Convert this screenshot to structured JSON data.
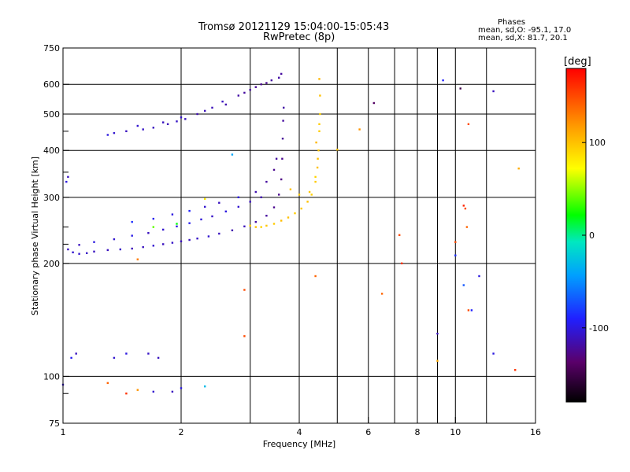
{
  "header": {
    "title_line1": "Tromsø 20121129 15:04:00-15:05:43",
    "title_line2": "RwPretec (8p)"
  },
  "stats": {
    "heading": "Phases",
    "line_o": "mean, sd,O: -95.1, 17.0",
    "line_x": "mean, sd,X:  81.7, 20.1"
  },
  "colorbar": {
    "unit": "[deg]",
    "ticks": [
      100,
      0,
      -100
    ],
    "range": [
      -180,
      180
    ]
  },
  "chart_data": {
    "type": "scatter",
    "title": "Tromsø 20121129 15:04:00-15:05:43",
    "subtitle": "RwPretec (8p)",
    "xlabel": "Frequency [MHz]",
    "ylabel": "Stationary phase Virtual Height [km]",
    "xscale": "log",
    "yscale": "log",
    "xlim": [
      1,
      16
    ],
    "ylim": [
      75,
      750
    ],
    "xticks": [
      1,
      2,
      4,
      6,
      8,
      10,
      16
    ],
    "yticks": [
      75,
      100,
      200,
      300,
      400,
      500,
      600,
      750
    ],
    "x_minor_gridlines": [
      3,
      5,
      7,
      9,
      12
    ],
    "y_minor_gridlines": [
      90,
      225,
      250,
      350,
      450
    ],
    "grid": true,
    "color_encodes": "phase [deg]",
    "series": [
      {
        "points": [
          [
            1.03,
            218
          ],
          [
            1.06,
            214
          ],
          [
            1.1,
            212
          ],
          [
            1.15,
            213
          ],
          [
            1.2,
            215
          ],
          [
            1.3,
            217
          ],
          [
            1.4,
            218
          ],
          [
            1.5,
            219
          ],
          [
            1.6,
            221
          ],
          [
            1.7,
            223
          ],
          [
            1.8,
            225
          ],
          [
            1.9,
            227
          ],
          [
            2.0,
            229
          ],
          [
            2.1,
            231
          ],
          [
            2.2,
            233
          ],
          [
            2.35,
            236
          ],
          [
            2.5,
            240
          ],
          [
            2.7,
            245
          ],
          [
            2.9,
            251
          ],
          [
            3.1,
            258
          ],
          [
            3.3,
            268
          ],
          [
            3.45,
            282
          ],
          [
            3.55,
            305
          ],
          [
            3.6,
            335
          ],
          [
            3.62,
            380
          ],
          [
            3.63,
            430
          ],
          [
            3.64,
            480
          ],
          [
            3.65,
            520
          ],
          [
            1.1,
            224
          ],
          [
            1.2,
            228
          ],
          [
            1.35,
            232
          ],
          [
            1.5,
            237
          ],
          [
            1.65,
            241
          ],
          [
            1.8,
            246
          ],
          [
            1.95,
            251
          ],
          [
            2.1,
            256
          ],
          [
            2.25,
            262
          ],
          [
            2.4,
            267
          ],
          [
            2.6,
            275
          ],
          [
            2.8,
            283
          ],
          [
            3.0,
            292
          ],
          [
            3.2,
            300
          ],
          [
            1.5,
            258
          ],
          [
            1.7,
            263
          ],
          [
            1.9,
            270
          ],
          [
            2.1,
            276
          ],
          [
            2.3,
            283
          ],
          [
            2.5,
            290
          ],
          [
            2.8,
            300
          ],
          [
            3.1,
            310
          ],
          [
            3.3,
            330
          ],
          [
            3.45,
            355
          ],
          [
            3.5,
            380
          ],
          [
            1.35,
            445
          ],
          [
            1.45,
            450
          ],
          [
            1.6,
            455
          ],
          [
            1.7,
            460
          ],
          [
            1.85,
            470
          ],
          [
            1.95,
            478
          ],
          [
            2.05,
            485
          ],
          [
            2.2,
            500
          ],
          [
            2.4,
            520
          ],
          [
            2.55,
            540
          ],
          [
            2.8,
            560
          ],
          [
            3.0,
            580
          ],
          [
            3.2,
            600
          ],
          [
            3.4,
            615
          ],
          [
            3.55,
            625
          ],
          [
            3.6,
            640
          ],
          [
            1.3,
            440
          ],
          [
            1.55,
            465
          ],
          [
            1.8,
            475
          ],
          [
            2.0,
            490
          ],
          [
            2.3,
            510
          ],
          [
            2.6,
            530
          ],
          [
            2.9,
            570
          ],
          [
            3.1,
            590
          ],
          [
            3.3,
            605
          ],
          [
            1.03,
            340
          ],
          [
            1.02,
            330
          ],
          [
            1.05,
            112
          ],
          [
            1.08,
            115
          ],
          [
            1.35,
            112
          ],
          [
            1.45,
            115
          ],
          [
            1.65,
            115
          ],
          [
            1.75,
            112
          ],
          [
            1.7,
            91
          ],
          [
            1.9,
            91
          ],
          [
            2.0,
            93
          ],
          [
            1.0,
            95
          ],
          [
            6.2,
            535
          ],
          [
            9.3,
            615
          ],
          [
            10.3,
            585
          ],
          [
            12.5,
            575
          ],
          [
            9.0,
            130
          ],
          [
            11.5,
            185
          ],
          [
            10.0,
            210
          ],
          [
            12.5,
            115
          ],
          [
            10.5,
            175
          ],
          [
            11.0,
            150
          ]
        ],
        "phase_deg": [
          -110,
          -105,
          -105,
          -108,
          -110,
          -110,
          -108,
          -112,
          -110,
          -105,
          -110,
          -108,
          -112,
          -110,
          -108,
          -105,
          -110,
          -115,
          -112,
          -118,
          -120,
          -125,
          -125,
          -128,
          -125,
          -122,
          -120,
          -118,
          -110,
          -100,
          -105,
          -98,
          -110,
          -105,
          -100,
          -95,
          -102,
          -108,
          -100,
          -105,
          -110,
          -115,
          -85,
          -95,
          -100,
          -90,
          -105,
          -110,
          -100,
          -115,
          -120,
          -125,
          -120,
          -105,
          -110,
          -108,
          -110,
          -112,
          -108,
          -110,
          -115,
          -112,
          -110,
          -118,
          -120,
          -125,
          -120,
          -118,
          -120,
          -100,
          -105,
          -110,
          -108,
          -112,
          -115,
          -120,
          -122,
          -125,
          -110,
          -100,
          -95,
          -110,
          -105,
          -100,
          -108,
          -110,
          -105,
          -110,
          -100,
          -105,
          -140,
          -90,
          -150,
          -110,
          -110,
          -100,
          -85,
          -100,
          -70,
          -90
        ]
      },
      {
        "points": [
          [
            3.0,
            252
          ],
          [
            3.1,
            250
          ],
          [
            3.2,
            250
          ],
          [
            3.3,
            252
          ],
          [
            3.45,
            255
          ],
          [
            3.6,
            260
          ],
          [
            3.75,
            265
          ],
          [
            3.9,
            272
          ],
          [
            4.05,
            280
          ],
          [
            4.2,
            292
          ],
          [
            4.3,
            305
          ],
          [
            4.4,
            330
          ],
          [
            4.45,
            360
          ],
          [
            4.48,
            400
          ],
          [
            4.5,
            450
          ],
          [
            4.52,
            500
          ],
          [
            4.52,
            560
          ],
          [
            4.5,
            620
          ],
          [
            3.8,
            315
          ],
          [
            4.0,
            305
          ],
          [
            4.25,
            310
          ],
          [
            4.4,
            340
          ],
          [
            4.46,
            380
          ],
          [
            4.42,
            420
          ],
          [
            4.5,
            470
          ]
        ],
        "phase_deg": [
          95,
          100,
          92,
          98,
          96,
          102,
          100,
          95,
          98,
          100,
          94,
          96,
          100,
          98,
          95,
          92,
          100,
          105,
          100,
          95,
          98,
          92,
          100,
          105,
          95
        ]
      },
      {
        "points": [
          [
            2.3,
            297
          ],
          [
            2.7,
            390
          ],
          [
            2.9,
            170
          ],
          [
            2.9,
            128
          ],
          [
            4.4,
            185
          ],
          [
            5.0,
            402
          ],
          [
            5.7,
            455
          ],
          [
            6.5,
            166
          ],
          [
            7.2,
            238
          ],
          [
            7.3,
            200
          ],
          [
            10.0,
            228
          ],
          [
            10.8,
            470
          ],
          [
            10.6,
            280
          ],
          [
            10.8,
            150
          ],
          [
            10.7,
            250
          ],
          [
            14.5,
            358
          ],
          [
            14.2,
            104
          ],
          [
            9.0,
            110
          ],
          [
            10.5,
            285
          ],
          [
            1.45,
            90
          ],
          [
            1.3,
            96
          ],
          [
            1.55,
            205
          ],
          [
            1.55,
            92
          ],
          [
            2.3,
            94
          ],
          [
            1.95,
            255
          ],
          [
            1.7,
            250
          ]
        ],
        "phase_deg": [
          80,
          -40,
          150,
          150,
          140,
          100,
          120,
          140,
          150,
          160,
          150,
          150,
          150,
          150,
          140,
          110,
          160,
          110,
          165,
          160,
          140,
          130,
          120,
          -30,
          20,
          40
        ]
      }
    ]
  }
}
